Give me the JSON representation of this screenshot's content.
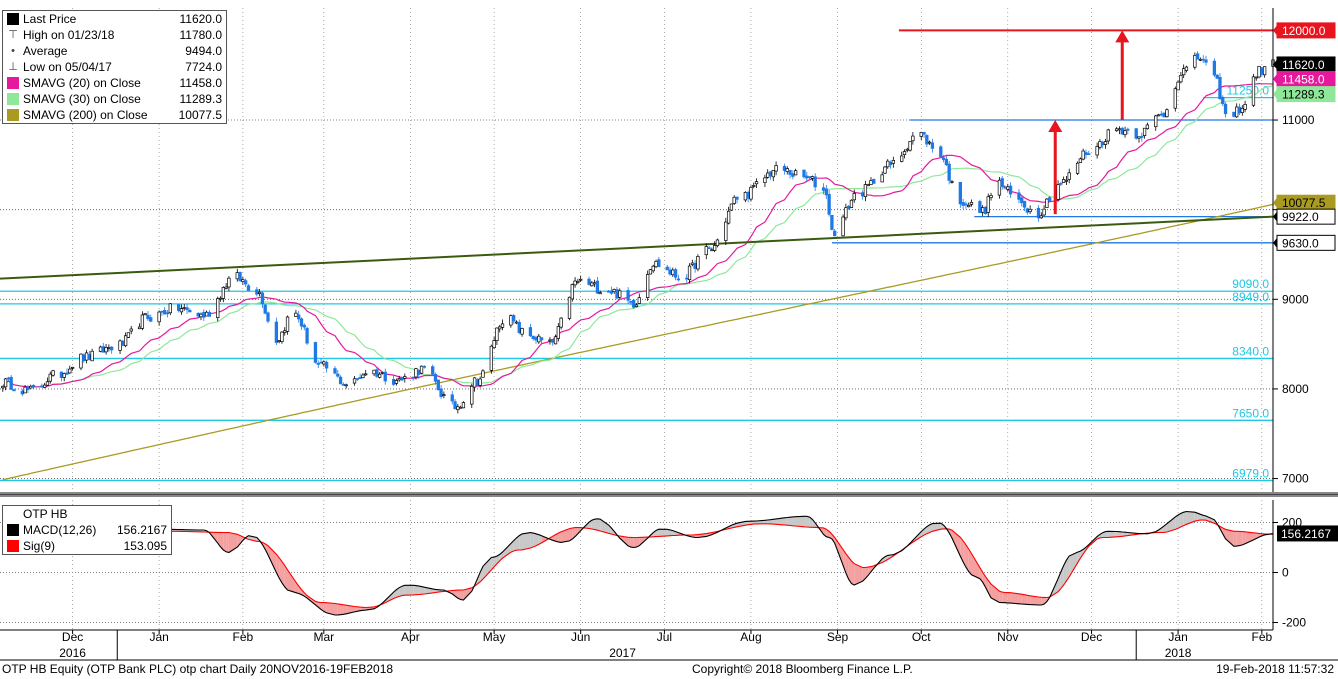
{
  "chart_data": [
    {
      "type": "candlestick",
      "panel": "price",
      "legend": [
        {
          "label": "Last Price",
          "value": "11620.0",
          "color": "#000000",
          "glyph": "box"
        },
        {
          "label": "High on 01/23/18",
          "value": "11780.0",
          "color": "#000000",
          "glyph": "high"
        },
        {
          "label": "Average",
          "value": "9494.0",
          "color": "#000000",
          "glyph": "avg"
        },
        {
          "label": "Low on 05/04/17",
          "value": "7724.0",
          "color": "#000000",
          "glyph": "low"
        },
        {
          "label": "SMAVG (20) on Close",
          "value": "11458.0",
          "color": "#e6199c",
          "glyph": "box"
        },
        {
          "label": "SMAVG (30) on Close",
          "value": "11289.3",
          "color": "#8fe89a",
          "glyph": "box"
        },
        {
          "label": "SMAVG (200) on Close",
          "value": "10077.5",
          "color": "#a99a21",
          "glyph": "box"
        }
      ],
      "ylim": [
        6850,
        12250
      ],
      "yticks": [
        7000,
        8000,
        9000,
        10000,
        11000
      ],
      "ytick_labels": [
        "7000",
        "8000",
        "9000",
        "",
        "11000"
      ],
      "axis_labels": [
        {
          "text": "12000.0",
          "value": 12000,
          "bg": "#e8141e",
          "fg": "#ffffff"
        },
        {
          "text": "11620.0",
          "value": 11620,
          "bg": "#000000",
          "fg": "#ffffff"
        },
        {
          "text": "11458.0",
          "value": 11458,
          "bg": "#e6199c",
          "fg": "#ffffff"
        },
        {
          "text": "11289.3",
          "value": 11289.3,
          "bg": "#8fe89a",
          "fg": "#000000"
        },
        {
          "text": "10077.5",
          "value": 10077.5,
          "bg": "#a99a21",
          "fg": "#000000"
        },
        {
          "text": "9922.0",
          "value": 9922,
          "bg": "#ffffff",
          "fg": "#000000"
        },
        {
          "text": "9630.0",
          "value": 9630,
          "bg": "#ffffff",
          "fg": "#000000"
        }
      ],
      "levels": [
        {
          "value": 12000,
          "label": "",
          "color": "#e8141e",
          "from": "2017-10-08"
        },
        {
          "value": 11250,
          "label": "11250.0",
          "color": "#1ec8e6",
          "from": "2018-01-25"
        },
        {
          "value": 11000,
          "label": "",
          "color": "#1e78e6",
          "from": "2017-10-12"
        },
        {
          "value": 9922,
          "label": "",
          "color": "#1e78e6",
          "from": "2017-11-04"
        },
        {
          "value": 9630,
          "label": "",
          "color": "#1e78e6",
          "from": "2017-09-14"
        },
        {
          "value": 9090,
          "label": "9090.0",
          "color": "#1ec8e6",
          "from": "2016-11-20"
        },
        {
          "value": 8949,
          "label": "8949.0",
          "color": "#1ec8e6",
          "from": "2016-11-20"
        },
        {
          "value": 8340,
          "label": "8340.0",
          "color": "#1ec8e6",
          "from": "2016-11-20"
        },
        {
          "value": 7650,
          "label": "7650.0",
          "color": "#1ec8e6",
          "from": "2016-11-20"
        },
        {
          "value": 6979,
          "label": "6979.0",
          "color": "#1ec8e6",
          "from": "2016-11-20"
        }
      ],
      "trendline": {
        "color": "#3a5a10",
        "points": [
          [
            "2016-11-20",
            9230
          ],
          [
            "2018-02-19",
            9922
          ]
        ]
      },
      "arrows": [
        {
          "x": "2017-12-03",
          "y_from": 9950,
          "y_to": 11000,
          "color": "#e8141e"
        },
        {
          "x": "2017-12-27",
          "y_from": 11000,
          "y_to": 12000,
          "color": "#e8141e"
        }
      ],
      "anchors": [
        [
          "2016-11-20",
          8080
        ],
        [
          "2016-12-01",
          7980
        ],
        [
          "2016-12-10",
          8150
        ],
        [
          "2016-12-20",
          8350
        ],
        [
          "2017-01-01",
          8480
        ],
        [
          "2017-01-12",
          8800
        ],
        [
          "2017-01-22",
          8900
        ],
        [
          "2017-02-01",
          8820
        ],
        [
          "2017-02-12",
          9250
        ],
        [
          "2017-02-20",
          9100
        ],
        [
          "2017-02-27",
          8550
        ],
        [
          "2017-03-05",
          8850
        ],
        [
          "2017-03-15",
          8250
        ],
        [
          "2017-03-25",
          8050
        ],
        [
          "2017-04-01",
          8200
        ],
        [
          "2017-04-12",
          8100
        ],
        [
          "2017-04-20",
          8220
        ],
        [
          "2017-05-02",
          7800
        ],
        [
          "2017-05-10",
          8100
        ],
        [
          "2017-05-20",
          8800
        ],
        [
          "2017-05-28",
          8600
        ],
        [
          "2017-06-05",
          8500
        ],
        [
          "2017-06-15",
          9200
        ],
        [
          "2017-06-26",
          9100
        ],
        [
          "2017-07-05",
          8960
        ],
        [
          "2017-07-12",
          9400
        ],
        [
          "2017-07-22",
          9250
        ],
        [
          "2017-08-01",
          9550
        ],
        [
          "2017-08-12",
          10150
        ],
        [
          "2017-08-26",
          10450
        ],
        [
          "2017-09-05",
          10350
        ],
        [
          "2017-09-12",
          10200
        ],
        [
          "2017-09-14",
          9750
        ],
        [
          "2017-09-24",
          10200
        ],
        [
          "2017-10-05",
          10500
        ],
        [
          "2017-10-15",
          10850
        ],
        [
          "2017-10-22",
          10650
        ],
        [
          "2017-10-30",
          10100
        ],
        [
          "2017-11-07",
          9980
        ],
        [
          "2017-11-12",
          10300
        ],
        [
          "2017-11-20",
          10100
        ],
        [
          "2017-11-26",
          9950
        ],
        [
          "2017-12-05",
          10300
        ],
        [
          "2017-12-15",
          10650
        ],
        [
          "2017-12-25",
          10900
        ],
        [
          "2018-01-02",
          10850
        ],
        [
          "2018-01-10",
          11050
        ],
        [
          "2018-01-18",
          11550
        ],
        [
          "2018-01-24",
          11700
        ],
        [
          "2018-01-29",
          11450
        ],
        [
          "2018-02-03",
          11000
        ],
        [
          "2018-02-08",
          11150
        ],
        [
          "2018-02-14",
          11550
        ],
        [
          "2018-02-19",
          11620
        ]
      ]
    },
    {
      "type": "line",
      "panel": "macd",
      "title": "OTP HB",
      "legend": [
        {
          "label": "MACD(12,26)",
          "value": "156.2167",
          "color": "#000000"
        },
        {
          "label": "Sig(9)",
          "value": "153.095",
          "color": "#ff0000"
        }
      ],
      "ylim": [
        -230,
        290
      ],
      "yticks": [
        -200,
        0,
        200
      ],
      "ytick_labels": [
        "-200",
        "0",
        "200"
      ],
      "last_label": {
        "text": "156.2167",
        "bg": "#000000",
        "fg": "#ffffff"
      },
      "macd_anchors": [
        [
          "2016-11-20",
          170
        ],
        [
          "2016-12-15",
          140
        ],
        [
          "2017-01-10",
          175
        ],
        [
          "2017-02-01",
          170
        ],
        [
          "2017-02-10",
          80
        ],
        [
          "2017-02-18",
          150
        ],
        [
          "2017-03-05",
          -80
        ],
        [
          "2017-03-20",
          -170
        ],
        [
          "2017-04-01",
          -150
        ],
        [
          "2017-04-15",
          -50
        ],
        [
          "2017-04-28",
          -70
        ],
        [
          "2017-05-05",
          -110
        ],
        [
          "2017-05-15",
          60
        ],
        [
          "2017-05-28",
          160
        ],
        [
          "2017-06-10",
          120
        ],
        [
          "2017-06-22",
          215
        ],
        [
          "2017-07-05",
          100
        ],
        [
          "2017-07-15",
          175
        ],
        [
          "2017-07-28",
          140
        ],
        [
          "2017-08-15",
          205
        ],
        [
          "2017-09-05",
          225
        ],
        [
          "2017-09-13",
          140
        ],
        [
          "2017-09-22",
          -50
        ],
        [
          "2017-10-05",
          70
        ],
        [
          "2017-10-22",
          200
        ],
        [
          "2017-11-05",
          -20
        ],
        [
          "2017-11-12",
          -120
        ],
        [
          "2017-11-28",
          -130
        ],
        [
          "2017-12-10",
          80
        ],
        [
          "2017-12-22",
          165
        ],
        [
          "2018-01-05",
          155
        ],
        [
          "2018-01-20",
          245
        ],
        [
          "2018-01-27",
          225
        ],
        [
          "2018-02-05",
          105
        ],
        [
          "2018-02-19",
          156
        ]
      ],
      "signal_anchors": [
        [
          "2016-11-20",
          165
        ],
        [
          "2016-12-20",
          150
        ],
        [
          "2017-01-20",
          165
        ],
        [
          "2017-02-10",
          160
        ],
        [
          "2017-02-20",
          125
        ],
        [
          "2017-03-15",
          -120
        ],
        [
          "2017-04-01",
          -140
        ],
        [
          "2017-04-15",
          -90
        ],
        [
          "2017-05-05",
          -70
        ],
        [
          "2017-05-25",
          90
        ],
        [
          "2017-06-15",
          180
        ],
        [
          "2017-07-05",
          140
        ],
        [
          "2017-07-25",
          150
        ],
        [
          "2017-08-20",
          195
        ],
        [
          "2017-09-10",
          180
        ],
        [
          "2017-09-25",
          20
        ],
        [
          "2017-10-25",
          175
        ],
        [
          "2017-11-15",
          -80
        ],
        [
          "2017-11-30",
          -100
        ],
        [
          "2017-12-20",
          140
        ],
        [
          "2018-01-10",
          160
        ],
        [
          "2018-01-25",
          210
        ],
        [
          "2018-02-05",
          165
        ],
        [
          "2018-02-19",
          153
        ]
      ]
    }
  ],
  "x_axis": {
    "start": "2016-11-20",
    "end": "2018-02-19",
    "months": [
      {
        "label": "Dec",
        "date": "2016-12-16"
      },
      {
        "label": "Jan",
        "date": "2017-01-16"
      },
      {
        "label": "Feb",
        "date": "2017-02-15"
      },
      {
        "label": "Mar",
        "date": "2017-03-16"
      },
      {
        "label": "Apr",
        "date": "2017-04-16"
      },
      {
        "label": "May",
        "date": "2017-05-16"
      },
      {
        "label": "Jun",
        "date": "2017-06-16"
      },
      {
        "label": "Jul",
        "date": "2017-07-16"
      },
      {
        "label": "Aug",
        "date": "2017-08-16"
      },
      {
        "label": "Sep",
        "date": "2017-09-16"
      },
      {
        "label": "Oct",
        "date": "2017-10-16"
      },
      {
        "label": "Nov",
        "date": "2017-11-16"
      },
      {
        "label": "Dec",
        "date": "2017-12-16"
      },
      {
        "label": "Jan",
        "date": "2018-01-16"
      },
      {
        "label": "Feb",
        "date": "2018-02-15"
      }
    ],
    "years": [
      {
        "label": "2016",
        "date": "2016-12-16"
      },
      {
        "label": "2017",
        "date": "2017-07-01"
      },
      {
        "label": "2018",
        "date": "2018-01-16"
      }
    ]
  },
  "colors": {
    "up": "#000000",
    "down": "#1e78e6",
    "sma20": "#e6199c",
    "sma30": "#8fe89a",
    "sma200": "#a99a21",
    "macd": "#000000",
    "signal": "#ff0000",
    "fill_above": "#c8c8c8",
    "fill_below": "#f5a0a0"
  },
  "footer": {
    "left": "OTP HB Equity (OTP Bank PLC) otp chart  Daily 20NOV2016-19FEB2018",
    "center": "Copyright© 2018 Bloomberg Finance L.P.",
    "right": "19-Feb-2018 11:57:32"
  }
}
